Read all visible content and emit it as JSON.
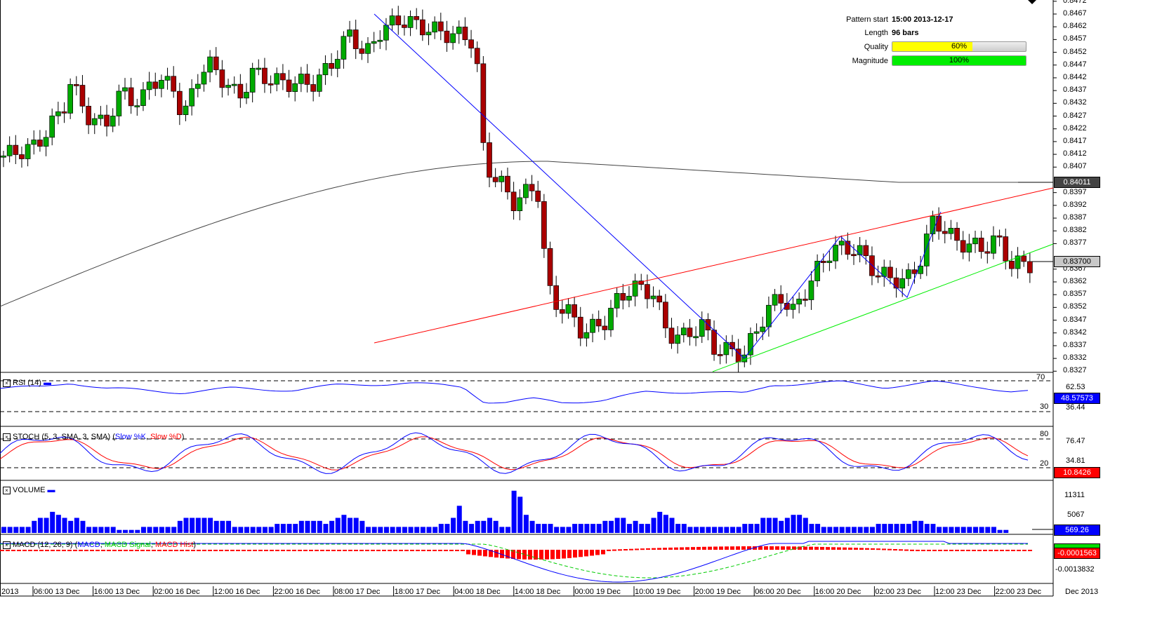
{
  "pattern_info": {
    "start_label": "Pattern start",
    "start_value": "15:00 2013-12-17",
    "length_label": "Length",
    "length_value": "96 bars",
    "quality_label": "Quality",
    "quality_value": "60%",
    "quality_pct": 60,
    "magnitude_label": "Magnitude",
    "magnitude_value": "100%",
    "magnitude_pct": 100
  },
  "colors": {
    "up": "#00aa00",
    "down": "#aa0000",
    "trend_down": "#0000ff",
    "resistance": "#ff0000",
    "support": "#00ee00",
    "ma": "#444444"
  },
  "price_axis": {
    "ticks": [
      "0.8472",
      "0.8467",
      "0.8462",
      "0.8457",
      "0.8452",
      "0.8447",
      "0.8442",
      "0.8437",
      "0.8432",
      "0.8427",
      "0.8422",
      "0.8417",
      "0.8412",
      "0.8407",
      "0.8397",
      "0.8392",
      "0.8387",
      "0.8382",
      "0.8377",
      "0.8367",
      "0.8362",
      "0.8357",
      "0.8352",
      "0.8347",
      "0.8342",
      "0.8337",
      "0.8332",
      "0.8327"
    ],
    "ma_tag": "0.84011",
    "price_tag": "0.83700"
  },
  "time_axis": [
    "2013",
    "06:00 13 Dec",
    "16:00 13 Dec",
    "02:00 16 Dec",
    "12:00 16 Dec",
    "22:00 16 Dec",
    "08:00 17 Dec",
    "18:00 17 Dec",
    "04:00 18 Dec",
    "14:00 18 Dec",
    "00:00 19 Dec",
    "10:00 19 Dec",
    "20:00 19 Dec",
    "06:00 20 Dec",
    "16:00 20 Dec",
    "02:00 23 Dec",
    "12:00 23 Dec",
    "22:00 23 Dec"
  ],
  "time_axis_right": "Dec 2013",
  "rsi": {
    "title": "RSI (14)",
    "level_high": "70",
    "level_low": "30",
    "tick_high": "62.53",
    "tick_low": "36.44",
    "value": "48.57573"
  },
  "stoch": {
    "title": "STOCH (5, 3, SMA, 3, SMA)",
    "k_label": "Slow %K",
    "d_label": "Slow %D",
    "level_high": "80",
    "level_low": "20",
    "tick_high": "76.47",
    "tick_low": "34.81",
    "value": "10.8426"
  },
  "volume": {
    "title": "VOLUME",
    "tick_high": "11311",
    "tick_low": "5067",
    "value": "569.26"
  },
  "macd": {
    "title": "MACD (12, 26, 9)",
    "macd_label": "MACD",
    "signal_label": "MACD Signal",
    "hist_label": "MACD Hist",
    "tick_low": "-0.0013832",
    "value": "-0.0001563"
  },
  "chart_data": {
    "type": "candlestick",
    "ylim": [
      0.8327,
      0.8472
    ],
    "close_path": [
      [
        0,
        0.8411
      ],
      [
        50,
        0.8415
      ],
      [
        90,
        0.843
      ],
      [
        100,
        0.844
      ],
      [
        130,
        0.8425
      ],
      [
        150,
        0.8424
      ],
      [
        175,
        0.8437
      ],
      [
        200,
        0.8431
      ],
      [
        215,
        0.8442
      ],
      [
        250,
        0.8438
      ],
      [
        260,
        0.8425
      ],
      [
        285,
        0.8445
      ],
      [
        300,
        0.8447
      ],
      [
        340,
        0.8434
      ],
      [
        360,
        0.8444
      ],
      [
        400,
        0.844
      ],
      [
        450,
        0.844
      ],
      [
        470,
        0.8447
      ],
      [
        500,
        0.846
      ],
      [
        520,
        0.845
      ],
      [
        540,
        0.846
      ],
      [
        570,
        0.8465
      ],
      [
        600,
        0.8462
      ],
      [
        640,
        0.8459
      ],
      [
        670,
        0.8458
      ],
      [
        680,
        0.8445
      ],
      [
        690,
        0.8408
      ],
      [
        715,
        0.84
      ],
      [
        730,
        0.8393
      ],
      [
        765,
        0.84
      ],
      [
        775,
        0.8373
      ],
      [
        785,
        0.8355
      ],
      [
        810,
        0.835
      ],
      [
        830,
        0.8342
      ],
      [
        860,
        0.8346
      ],
      [
        880,
        0.8355
      ],
      [
        900,
        0.836
      ],
      [
        930,
        0.8358
      ],
      [
        950,
        0.8342
      ],
      [
        970,
        0.834
      ],
      [
        1000,
        0.8345
      ],
      [
        1020,
        0.8335
      ],
      [
        1045,
        0.8335
      ],
      [
        1060,
        0.8333
      ],
      [
        1080,
        0.8345
      ],
      [
        1110,
        0.8357
      ],
      [
        1130,
        0.835
      ],
      [
        1160,
        0.8365
      ],
      [
        1185,
        0.8375
      ],
      [
        1220,
        0.8375
      ],
      [
        1250,
        0.8365
      ],
      [
        1290,
        0.8362
      ],
      [
        1310,
        0.837
      ],
      [
        1330,
        0.8387
      ],
      [
        1360,
        0.8378
      ],
      [
        1400,
        0.8375
      ],
      [
        1420,
        0.8379
      ],
      [
        1440,
        0.8369
      ],
      [
        1470,
        0.8369
      ]
    ],
    "rsi_path": [
      [
        0,
        60
      ],
      [
        60,
        62
      ],
      [
        100,
        68
      ],
      [
        150,
        60
      ],
      [
        260,
        55
      ],
      [
        330,
        60
      ],
      [
        420,
        58
      ],
      [
        480,
        64
      ],
      [
        580,
        67
      ],
      [
        660,
        62
      ],
      [
        690,
        43
      ],
      [
        720,
        42
      ],
      [
        760,
        46
      ],
      [
        800,
        42
      ],
      [
        860,
        45
      ],
      [
        920,
        55
      ],
      [
        1000,
        56
      ],
      [
        1060,
        53
      ],
      [
        1100,
        65
      ],
      [
        1200,
        68
      ],
      [
        1260,
        62
      ],
      [
        1330,
        68
      ],
      [
        1400,
        62
      ],
      [
        1440,
        56
      ],
      [
        1470,
        56
      ]
    ],
    "volume_bars": [
      2,
      2,
      2,
      2,
      2,
      4,
      5,
      5,
      7,
      6,
      5,
      4,
      5,
      4,
      2,
      2,
      2,
      2,
      2,
      1,
      1,
      1,
      1,
      2,
      2,
      2,
      2,
      2,
      2,
      4,
      5,
      5,
      5,
      5,
      5,
      4,
      4,
      4,
      2,
      2,
      2,
      2,
      2,
      2,
      2,
      3,
      3,
      3,
      3,
      4,
      4,
      4,
      4,
      3,
      4,
      5,
      6,
      5,
      5,
      4,
      2,
      2,
      2,
      2,
      2,
      2,
      2,
      2,
      2,
      2,
      2,
      2,
      3,
      3,
      5,
      9,
      4,
      3,
      4,
      4,
      5,
      4,
      2,
      2,
      14,
      12,
      6,
      4,
      3,
      3,
      3,
      2,
      2,
      2,
      3,
      3,
      3,
      3,
      3,
      4,
      4,
      5,
      5,
      3,
      4,
      3,
      3,
      5,
      7,
      6,
      5,
      3,
      3,
      2,
      2,
      2,
      2,
      2,
      2,
      2,
      2,
      2,
      3,
      3,
      3,
      5,
      5,
      5,
      4,
      5,
      6,
      6,
      5,
      3,
      3,
      2,
      2,
      2,
      2,
      2,
      2,
      2,
      2,
      2,
      3,
      3,
      3,
      3,
      3,
      3,
      4,
      4,
      3,
      3,
      2,
      2,
      2,
      2,
      2,
      2,
      2,
      2,
      2,
      2,
      1,
      1
    ]
  }
}
